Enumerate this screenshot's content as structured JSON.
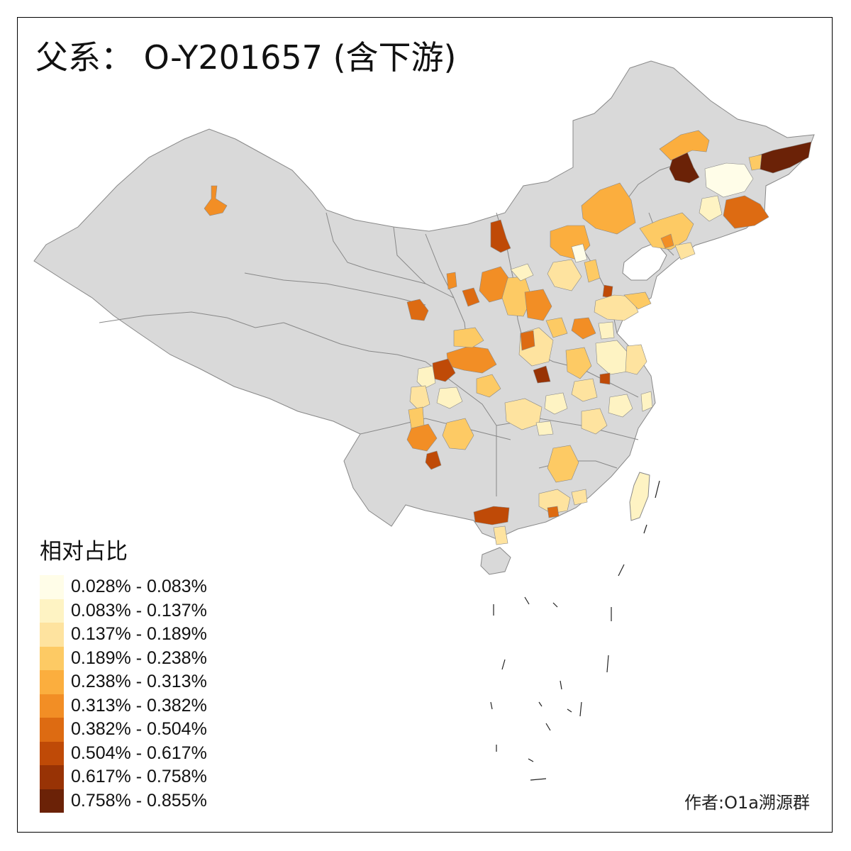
{
  "title": "父系：  O-Y201657 (含下游)",
  "legend": {
    "title": "相对占比",
    "items": [
      {
        "label": "0.028% - 0.083%",
        "color": "#FFFDE8"
      },
      {
        "label": "0.083% - 0.137%",
        "color": "#FEF3C3"
      },
      {
        "label": "0.137% - 0.189%",
        "color": "#FEE39F"
      },
      {
        "label": "0.189% - 0.238%",
        "color": "#FDCA64"
      },
      {
        "label": "0.238% - 0.313%",
        "color": "#FBAE3E"
      },
      {
        "label": "0.313% - 0.382%",
        "color": "#F28E25"
      },
      {
        "label": "0.382% - 0.504%",
        "color": "#DD6B12"
      },
      {
        "label": "0.504% - 0.617%",
        "color": "#BF4A07"
      },
      {
        "label": "0.617% - 0.758%",
        "color": "#983305"
      },
      {
        "label": "0.758% - 0.855%",
        "color": "#6B2207"
      }
    ]
  },
  "author": "作者:O1a溯源群",
  "colors": {
    "land": "#D9D9D9",
    "border": "#888888"
  }
}
